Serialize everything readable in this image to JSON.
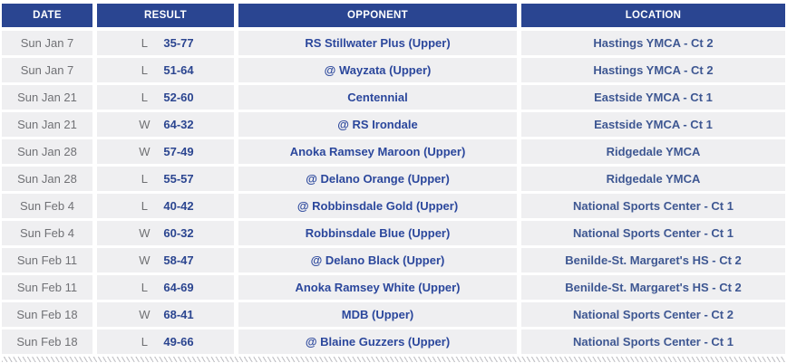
{
  "colors": {
    "header_bg": "#2a4591",
    "header_text": "#ffffff",
    "row_bg": "#efeff1",
    "date_text": "#707175",
    "score_text": "#2b4590",
    "opponent_text": "#2b479c",
    "location_text": "#3e5792",
    "hatch_color": "#c6c6ca"
  },
  "table": {
    "columns": [
      {
        "key": "date",
        "label": "DATE"
      },
      {
        "key": "result",
        "label": "RESULT"
      },
      {
        "key": "opponent",
        "label": "OPPONENT"
      },
      {
        "key": "location",
        "label": "LOCATION"
      }
    ],
    "rows": [
      {
        "date": "Sun Jan 7",
        "result_letter": "L",
        "result_score": "35-77",
        "opponent": "RS Stillwater Plus (Upper)",
        "location": "Hastings YMCA - Ct 2"
      },
      {
        "date": "Sun Jan 7",
        "result_letter": "L",
        "result_score": "51-64",
        "opponent": "@ Wayzata (Upper)",
        "location": "Hastings YMCA - Ct 2"
      },
      {
        "date": "Sun Jan 21",
        "result_letter": "L",
        "result_score": "52-60",
        "opponent": "Centennial",
        "location": "Eastside YMCA - Ct 1"
      },
      {
        "date": "Sun Jan 21",
        "result_letter": "W",
        "result_score": "64-32",
        "opponent": "@ RS Irondale",
        "location": "Eastside YMCA - Ct 1"
      },
      {
        "date": "Sun Jan 28",
        "result_letter": "W",
        "result_score": "57-49",
        "opponent": "Anoka Ramsey Maroon (Upper)",
        "location": "Ridgedale YMCA"
      },
      {
        "date": "Sun Jan 28",
        "result_letter": "L",
        "result_score": "55-57",
        "opponent": "@ Delano Orange (Upper)",
        "location": "Ridgedale YMCA"
      },
      {
        "date": "Sun Feb 4",
        "result_letter": "L",
        "result_score": "40-42",
        "opponent": "@ Robbinsdale Gold (Upper)",
        "location": "National Sports Center - Ct 1"
      },
      {
        "date": "Sun Feb 4",
        "result_letter": "W",
        "result_score": "60-32",
        "opponent": "Robbinsdale Blue (Upper)",
        "location": "National Sports Center - Ct 1"
      },
      {
        "date": "Sun Feb 11",
        "result_letter": "W",
        "result_score": "58-47",
        "opponent": "@ Delano Black (Upper)",
        "location": "Benilde-St. Margaret's HS - Ct 2"
      },
      {
        "date": "Sun Feb 11",
        "result_letter": "L",
        "result_score": "64-69",
        "opponent": "Anoka Ramsey White (Upper)",
        "location": "Benilde-St. Margaret's HS - Ct 2"
      },
      {
        "date": "Sun Feb 18",
        "result_letter": "W",
        "result_score": "68-41",
        "opponent": "MDB (Upper)",
        "location": "National Sports Center - Ct 2"
      },
      {
        "date": "Sun Feb 18",
        "result_letter": "L",
        "result_score": "49-66",
        "opponent": "@ Blaine Guzzers (Upper)",
        "location": "National Sports Center - Ct 1"
      }
    ]
  }
}
